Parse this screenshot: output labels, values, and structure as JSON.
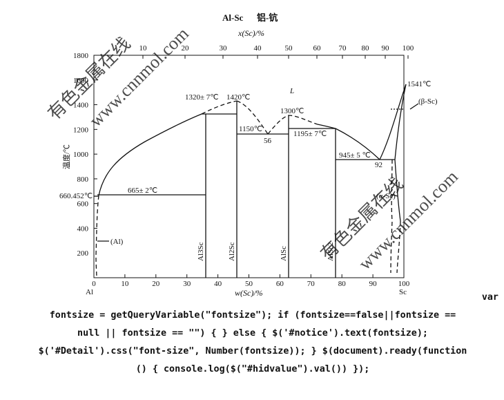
{
  "diagram": {
    "title": "Al-Sc",
    "title_cn": "铝-钪",
    "top_axis_title": "x(Sc)/%",
    "bottom_axis_title": "w(Sc)/%",
    "y_axis_title": "温度/℃",
    "top_ticks": [
      "10",
      "20",
      "30",
      "40",
      "50",
      "60",
      "70",
      "80",
      "90",
      "100"
    ],
    "bottom_ticks": [
      "10",
      "20",
      "30",
      "40",
      "50",
      "60",
      "70",
      "80",
      "90",
      "100"
    ],
    "bottom_zero": "0",
    "y_ticks": [
      "200",
      "400",
      "600",
      "800",
      "1000",
      "1200",
      "1400",
      "1600",
      "1800"
    ],
    "left_element": "Al",
    "right_element": "Sc",
    "labels": {
      "al_melt": "660.452℃",
      "eutectic_665": "665± 2℃",
      "peritectic_1320": "1320± 7℃",
      "max_1420": "1420℃",
      "liquid": "L",
      "eutectic_1150": "1150℃",
      "comp_56": "56",
      "max_1300": "1300℃",
      "peritectic_1195": "1195± 7℃",
      "eutectic_945": "945± 5 ℃",
      "comp_92": "92",
      "sc_melt": "1541℃",
      "beta_sc": "(β-Sc)",
      "alpha_sc": "(α-Sc)",
      "al_phase": "(Al)",
      "al3sc": "Al3Sc",
      "al2sc": "Al2Sc",
      "alsc": "AlSc",
      "alsc2": "AlSc2"
    },
    "watermarks": [
      "有色金属在线",
      "www.cnnmol.com"
    ],
    "colors": {
      "lines": "#111111",
      "watermark": "#c8c8c8"
    }
  },
  "code_text": {
    "line1": "var",
    "line2": "fontsize = getQueryVariable(\"fontsize\"); if (fontsize==false||fontsize ==",
    "line3": "null || fontsize == \"\") { } else { $('#notice').text(fontsize);",
    "line4": "$('#Detail').css(\"font-size\", Number(fontsize)); } $(document).ready(function",
    "line5": "() { console.log($(\"#hidvalue\").val()) });"
  }
}
